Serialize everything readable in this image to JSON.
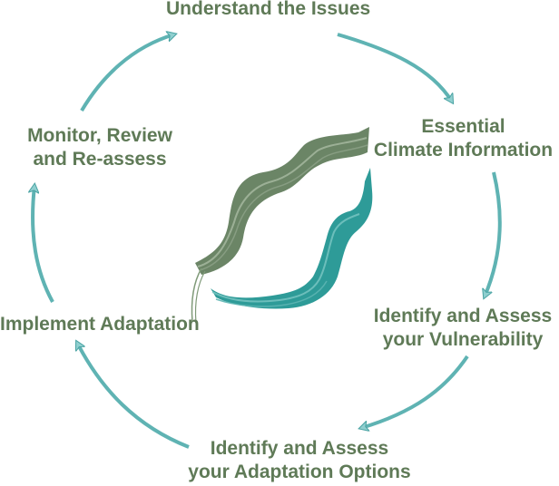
{
  "diagram": {
    "steps": [
      {
        "id": "understand",
        "lines": [
          "Understand the Issues"
        ]
      },
      {
        "id": "essential",
        "lines": [
          "Essential",
          "Climate Information"
        ]
      },
      {
        "id": "identify-vulnerability",
        "lines": [
          "Identify and Assess",
          "your Vulnerability"
        ]
      },
      {
        "id": "identify-options",
        "lines": [
          "Identify and Assess",
          "your Adaptation Options"
        ]
      },
      {
        "id": "implement",
        "lines": [
          "Implement Adaptation"
        ]
      },
      {
        "id": "monitor",
        "lines": [
          "Monitor, Review",
          "and Re-assess"
        ]
      }
    ],
    "colors": {
      "label_text": "#5f7a57",
      "arrow": "#5fb3b3",
      "arrow_head_fill": "#8fcfcf",
      "ribbon_green": "#6b8566",
      "ribbon_teal": "#2e9b98"
    }
  }
}
